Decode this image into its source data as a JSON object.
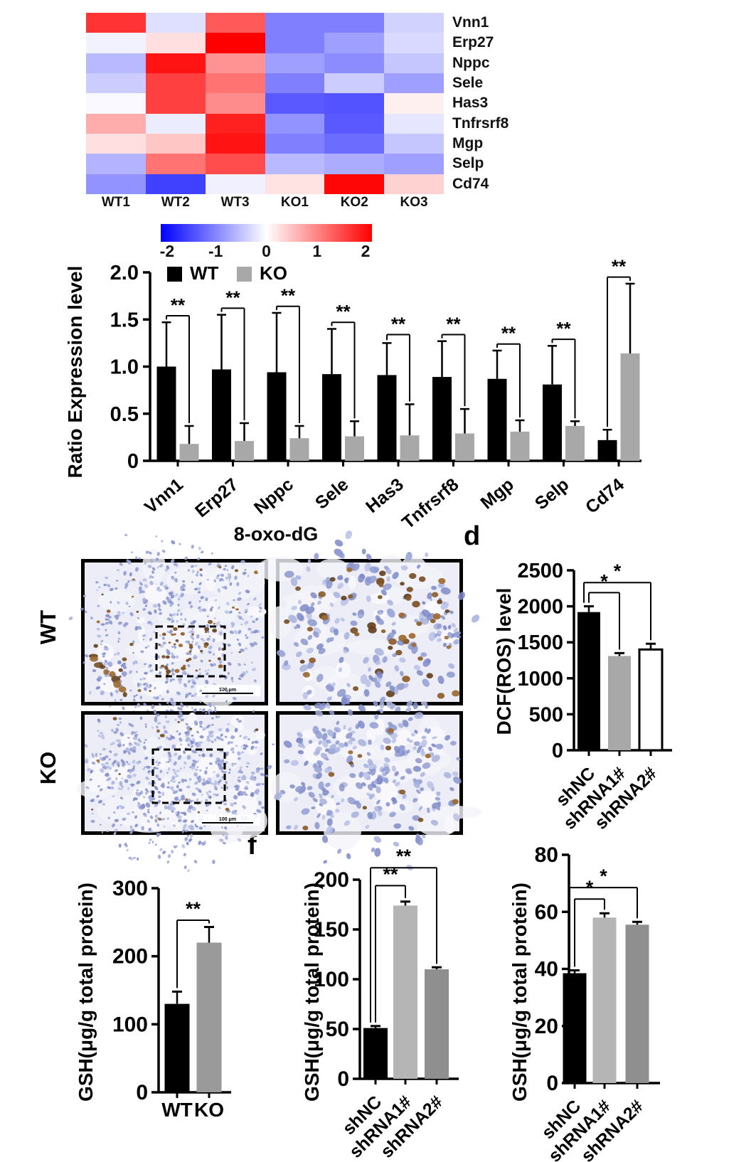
{
  "labels": {
    "histology_title": "8-oxo-dG",
    "panel_d": "d",
    "panel_f": "f",
    "row_wt": "WT",
    "row_ko": "KO",
    "scale_bar": "100 μm"
  },
  "chart_data": [
    {
      "id": "deg_heatmap",
      "type": "heatmap",
      "rows": [
        "Vnn1",
        "Erp27",
        "Nppc",
        "Sele",
        "Has3",
        "Tnfrsrf8",
        "Mgp",
        "Selp",
        "Cd74"
      ],
      "columns": [
        "WT1",
        "WT2",
        "WT3",
        "KO1",
        "KO2",
        "KO3"
      ],
      "values": [
        [
          1.6,
          -0.25,
          1.3,
          -1.0,
          -1.0,
          -0.35
        ],
        [
          -0.1,
          0.25,
          2.0,
          -1.0,
          -0.75,
          -0.3
        ],
        [
          -0.55,
          1.85,
          0.85,
          -0.75,
          -0.9,
          -0.45
        ],
        [
          -0.4,
          1.5,
          1.1,
          -1.0,
          -0.4,
          -0.75
        ],
        [
          -0.05,
          1.5,
          0.9,
          -1.3,
          -1.35,
          0.12
        ],
        [
          0.65,
          -0.15,
          1.75,
          -0.85,
          -1.3,
          -0.2
        ],
        [
          0.25,
          0.45,
          1.85,
          -1.0,
          -1.15,
          -0.45
        ],
        [
          -0.6,
          1.1,
          1.4,
          -0.55,
          -0.65,
          -0.75
        ],
        [
          -0.85,
          -1.5,
          -0.12,
          0.22,
          1.95,
          0.35
        ]
      ],
      "colorbar": {
        "min": -2,
        "max": 2,
        "ticks": [
          "-2",
          "-1",
          "0",
          "1",
          "2"
        ],
        "min_color": "#0000ff",
        "mid_color": "#ffffff",
        "max_color": "#ff0000"
      }
    },
    {
      "id": "expression",
      "type": "bar",
      "ylabel": "Ratio Expression level",
      "ylim": [
        0,
        2.0
      ],
      "yticks": [
        "0",
        "0.5",
        "1.0",
        "1.5",
        "2.0"
      ],
      "categories": [
        "Vnn1",
        "Erp27",
        "Nppc",
        "Sele",
        "Has3",
        "Tnfrsrf8",
        "Mgp",
        "Selp",
        "Cd74"
      ],
      "series": [
        {
          "name": "WT",
          "color": "#000000",
          "values": [
            1.0,
            0.97,
            0.94,
            0.92,
            0.91,
            0.89,
            0.87,
            0.81,
            0.22
          ],
          "errors": [
            0.47,
            0.58,
            0.63,
            0.48,
            0.34,
            0.38,
            0.3,
            0.41,
            0.11
          ]
        },
        {
          "name": "KO",
          "color": "#a8a8a8",
          "values": [
            0.18,
            0.21,
            0.24,
            0.26,
            0.27,
            0.29,
            0.31,
            0.37,
            1.14
          ],
          "errors": [
            0.19,
            0.19,
            0.13,
            0.16,
            0.33,
            0.26,
            0.12,
            0.05,
            0.74
          ]
        }
      ],
      "sig": {
        "label": "**",
        "bracket_y": [
          1.54,
          1.62,
          1.64,
          1.47,
          1.34,
          1.34,
          1.24,
          1.29,
          1.95
        ]
      },
      "legend_position": "top-left"
    },
    {
      "id": "dcf",
      "type": "bar",
      "ylabel": "DCF(ROS) level",
      "ylim": [
        0,
        2500
      ],
      "yticks": [
        "0",
        "500",
        "1000",
        "1500",
        "2000",
        "2500"
      ],
      "categories": [
        "shNC",
        "shRNA1#",
        "shRNA2#"
      ],
      "values": [
        1920,
        1310,
        1400
      ],
      "errors": [
        80,
        40,
        80
      ],
      "bar_colors": [
        "#000000",
        "#a8a8a8",
        "#ffffff"
      ],
      "sig": [
        {
          "a": 0,
          "b": 1,
          "y": 2190,
          "label": "*"
        },
        {
          "a": 0,
          "b": 2,
          "y": 2330,
          "label": "*"
        }
      ]
    },
    {
      "id": "gsh_wt_ko",
      "type": "bar",
      "ylabel": "GSH(μg/g total protein)",
      "ylim": [
        0,
        300
      ],
      "yticks": [
        "0",
        "100",
        "200",
        "300"
      ],
      "categories": [
        "WT",
        "KO"
      ],
      "values": [
        130,
        220
      ],
      "errors": [
        18,
        23
      ],
      "bar_colors": [
        "#000000",
        "#9a9a9a"
      ],
      "sig": [
        {
          "a": 0,
          "b": 1,
          "y": 253,
          "label": "**"
        }
      ]
    },
    {
      "id": "gsh_shrna_mid",
      "type": "bar",
      "ylabel": "GSH(μg/g total protein)",
      "ylim": [
        0,
        200
      ],
      "yticks": [
        "0",
        "50",
        "100",
        "150",
        "200"
      ],
      "categories": [
        "shNC",
        "shRNA1#",
        "shRNA2#"
      ],
      "values": [
        51,
        174,
        110
      ],
      "errors": [
        2,
        4,
        2
      ],
      "bar_colors": [
        "#000000",
        "#b5b5b5",
        "#8f8f8f"
      ],
      "sig": [
        {
          "a": 0,
          "b": 1,
          "y": 194,
          "label": "**"
        },
        {
          "a": 0,
          "b": 2,
          "y": 212,
          "label": "**"
        }
      ]
    },
    {
      "id": "gsh_shrna_right",
      "type": "bar",
      "ylabel": "GSH(μg/g total protein)",
      "ylim": [
        0,
        80
      ],
      "yticks": [
        "0",
        "20",
        "40",
        "60",
        "80"
      ],
      "categories": [
        "shNC",
        "shRNA1#",
        "shRNA2#"
      ],
      "values": [
        38.5,
        58,
        55.5
      ],
      "errors": [
        1,
        1.5,
        1
      ],
      "bar_colors": [
        "#000000",
        "#b5b5b5",
        "#8f8f8f"
      ],
      "sig": [
        {
          "a": 0,
          "b": 1,
          "y": 64.5,
          "label": "*"
        },
        {
          "a": 0,
          "b": 2,
          "y": 68.5,
          "label": "*"
        }
      ]
    }
  ]
}
